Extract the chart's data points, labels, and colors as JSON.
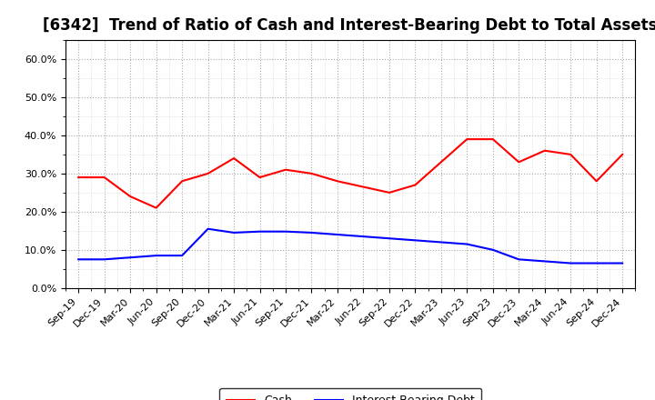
{
  "title": "[6342]  Trend of Ratio of Cash and Interest-Bearing Debt to Total Assets",
  "x_labels": [
    "Sep-19",
    "Dec-19",
    "Mar-20",
    "Jun-20",
    "Sep-20",
    "Dec-20",
    "Mar-21",
    "Jun-21",
    "Sep-21",
    "Dec-21",
    "Mar-22",
    "Jun-22",
    "Sep-22",
    "Dec-22",
    "Mar-23",
    "Jun-23",
    "Sep-23",
    "Dec-23",
    "Mar-24",
    "Jun-24",
    "Sep-24",
    "Dec-24"
  ],
  "cash": [
    0.29,
    0.29,
    0.24,
    0.21,
    0.28,
    0.3,
    0.34,
    0.29,
    0.31,
    0.3,
    0.28,
    0.265,
    0.25,
    0.27,
    0.33,
    0.39,
    0.39,
    0.33,
    0.36,
    0.35,
    0.28,
    0.35
  ],
  "interest_bearing_debt": [
    0.075,
    0.075,
    0.08,
    0.085,
    0.085,
    0.155,
    0.145,
    0.148,
    0.148,
    0.145,
    0.14,
    0.135,
    0.13,
    0.125,
    0.12,
    0.115,
    0.1,
    0.075,
    0.07,
    0.065,
    0.065,
    0.065
  ],
  "cash_color": "#FF0000",
  "debt_color": "#0000FF",
  "ylim": [
    0.0,
    0.65
  ],
  "yticks": [
    0.0,
    0.1,
    0.2,
    0.3,
    0.4,
    0.5,
    0.6
  ],
  "background_color": "#FFFFFF",
  "plot_bg_color": "#FFFFFF",
  "grid_color": "#AAAAAA",
  "title_fontsize": 12,
  "tick_fontsize": 8,
  "legend_cash": "Cash",
  "legend_debt": "Interest-Bearing Debt"
}
